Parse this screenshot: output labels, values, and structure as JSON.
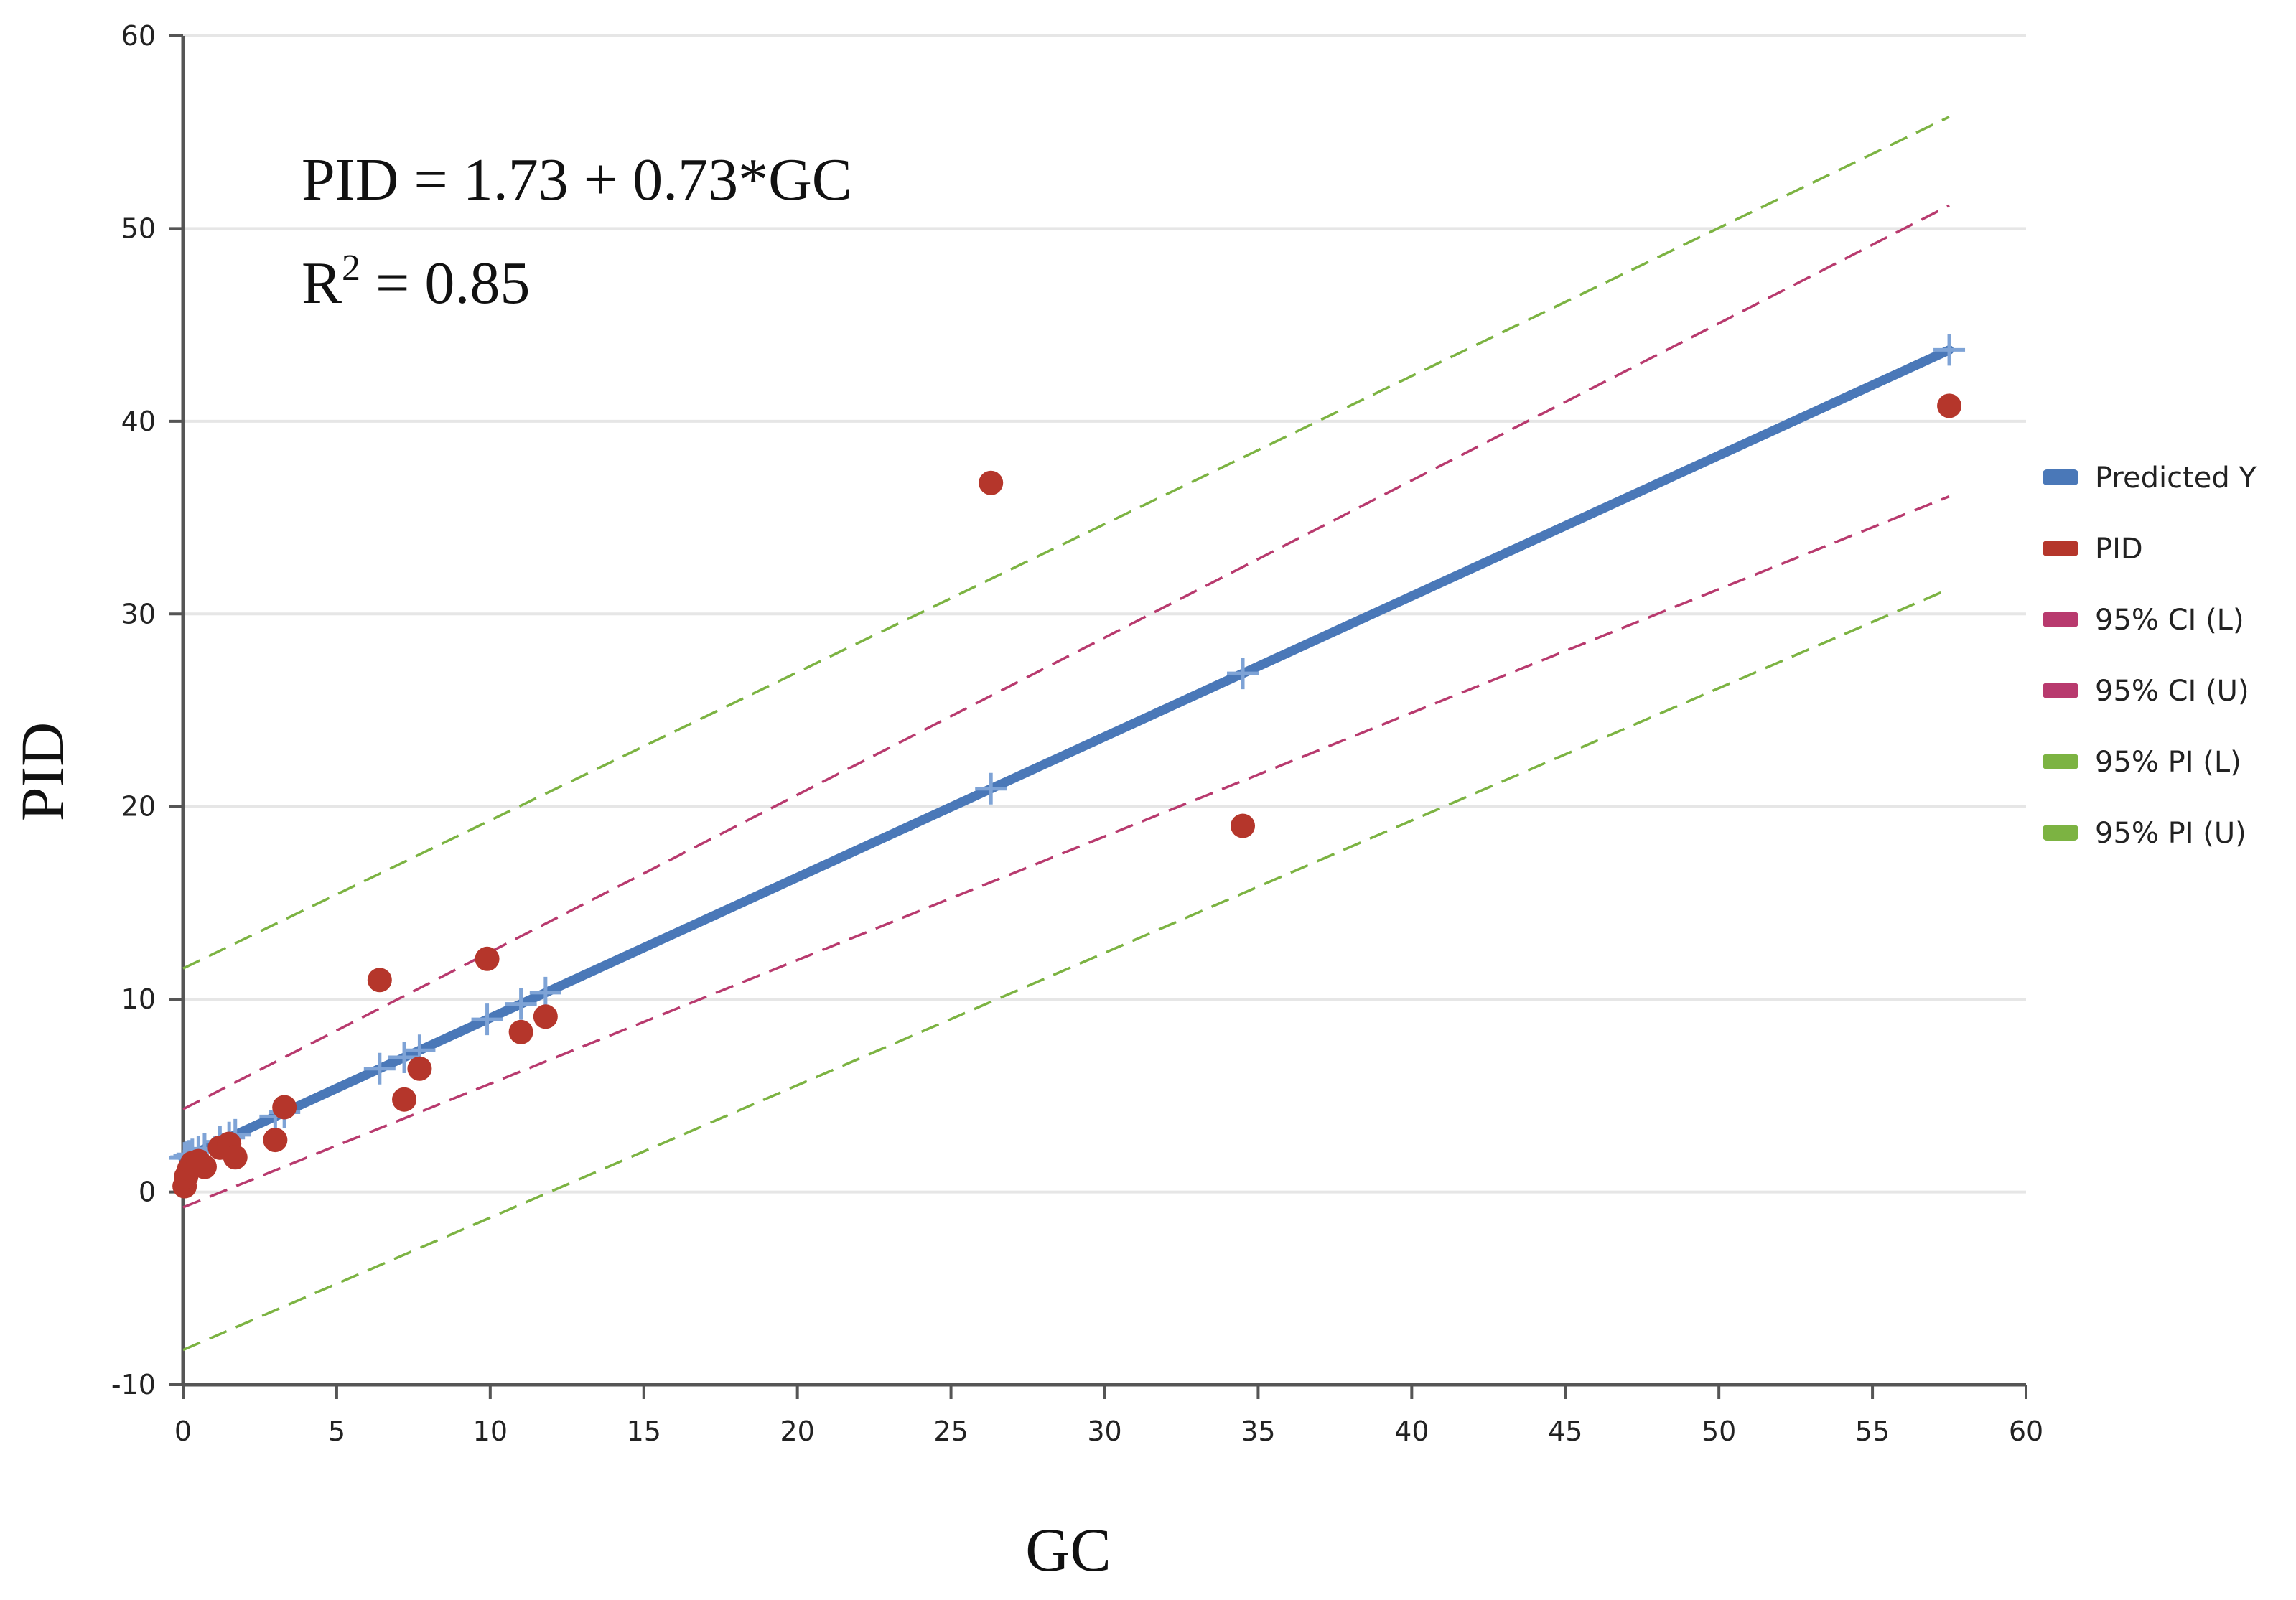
{
  "chart_data": {
    "type": "scatter",
    "xlabel": "GC",
    "ylabel": "PID",
    "xlim": [
      0,
      60
    ],
    "ylim": [
      -10,
      60
    ],
    "x_ticks": [
      0,
      5,
      10,
      15,
      20,
      25,
      30,
      35,
      40,
      45,
      50,
      55,
      60
    ],
    "y_ticks": [
      -10,
      0,
      10,
      20,
      30,
      40,
      50,
      60
    ],
    "grid": "horizontal",
    "legend_position": "right",
    "annotations": {
      "equation": "PID = 1.73 + 0.73*GC",
      "r2_prefix": "R",
      "r2_sup": "2",
      "r2_value": " = 0.85"
    },
    "regression": {
      "intercept": 1.73,
      "slope": 0.73
    },
    "gc_values": [
      0.05,
      0.1,
      0.2,
      0.3,
      0.5,
      0.7,
      1.2,
      1.5,
      1.7,
      3.0,
      3.3,
      6.4,
      7.2,
      7.7,
      9.9,
      11.0,
      11.8,
      26.3,
      34.5,
      57.5
    ],
    "series": [
      {
        "name": "Predicted Y",
        "kind": "line-with-markers",
        "color": "#4a78b8",
        "line_x": [
          0,
          57.5
        ],
        "line_y": [
          1.73,
          43.7
        ]
      },
      {
        "name": "PID",
        "kind": "scatter",
        "color": "#b5362b",
        "x": [
          0.05,
          0.1,
          0.2,
          0.3,
          0.5,
          0.7,
          1.2,
          1.5,
          1.7,
          3.0,
          3.3,
          6.4,
          7.2,
          7.7,
          9.9,
          11.0,
          11.8,
          26.3,
          34.5,
          57.5
        ],
        "y": [
          0.3,
          0.8,
          1.2,
          1.5,
          1.6,
          1.3,
          2.3,
          2.5,
          1.8,
          2.7,
          4.4,
          11.0,
          4.8,
          6.4,
          12.1,
          8.3,
          9.1,
          36.8,
          19.0,
          40.8
        ]
      },
      {
        "name": "95% CI (L)",
        "kind": "dashed",
        "color": "#b83a6e",
        "x": [
          0,
          57.5
        ],
        "y": [
          -0.8,
          36.1
        ]
      },
      {
        "name": "95% CI (U)",
        "kind": "dashed",
        "color": "#b83a6e",
        "x": [
          0,
          57.5
        ],
        "y": [
          4.3,
          51.2
        ]
      },
      {
        "name": "95% PI (L)",
        "kind": "dashed",
        "color": "#7cb342",
        "x": [
          0,
          57.5
        ],
        "y": [
          -8.2,
          31.3
        ]
      },
      {
        "name": "95% PI (U)",
        "kind": "dashed",
        "color": "#7cb342",
        "x": [
          0,
          57.5
        ],
        "y": [
          11.6,
          55.8
        ]
      }
    ]
  }
}
